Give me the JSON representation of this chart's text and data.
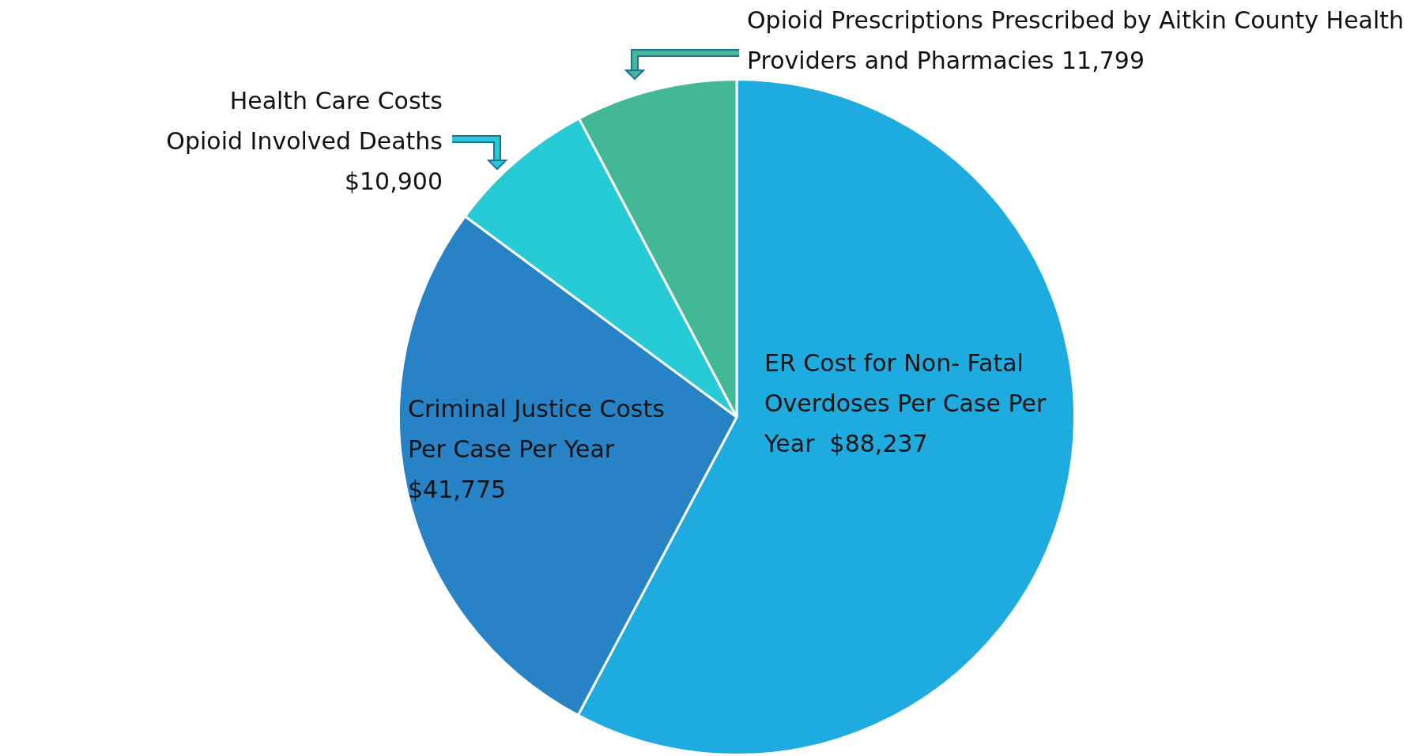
{
  "chart_data": {
    "type": "pie",
    "categories": [
      "ER Cost for Non- Fatal Overdoses Per Case Per Year ",
      "Criminal Justice Costs Per Case Per Year",
      "Health Care Costs Opioid Involved Deaths",
      "Opioid Prescriptions Prescribed by Aitkin County Health Providers and Pharmacies"
    ],
    "values": [
      88237,
      41775,
      10900,
      11799
    ],
    "value_labels": [
      "$88,237",
      "$41,775",
      "$10,900",
      "11,799"
    ],
    "colors": [
      "#1eabe0",
      "#2783c6",
      "#27cbd6",
      "#42b896"
    ],
    "legend": false
  }
}
